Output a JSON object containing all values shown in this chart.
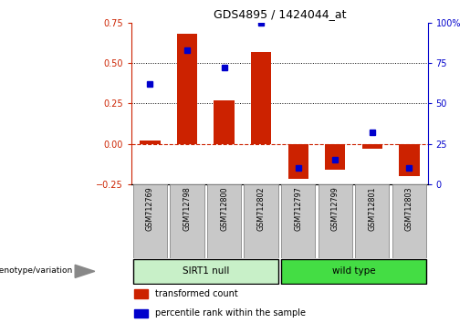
{
  "title": "GDS4895 / 1424044_at",
  "samples": [
    "GSM712769",
    "GSM712798",
    "GSM712800",
    "GSM712802",
    "GSM712797",
    "GSM712799",
    "GSM712801",
    "GSM712803"
  ],
  "red_bars": [
    0.02,
    0.68,
    0.27,
    0.57,
    -0.22,
    -0.16,
    -0.03,
    -0.2
  ],
  "blue_dots": [
    62,
    83,
    72,
    100,
    10,
    15,
    32,
    10
  ],
  "ylim_left": [
    -0.25,
    0.75
  ],
  "ylim_right": [
    0,
    100
  ],
  "yticks_left": [
    -0.25,
    0.0,
    0.25,
    0.5,
    0.75
  ],
  "yticks_right": [
    0,
    25,
    50,
    75,
    100
  ],
  "hlines_dotted": [
    0.25,
    0.5
  ],
  "hline_dashed": 0.0,
  "bar_color": "#CC2200",
  "dot_color": "#0000CC",
  "left_axis_color": "#CC2200",
  "right_axis_color": "#0000CC",
  "group_info": [
    {
      "start": 0,
      "end": 3,
      "color": "#C8F0C8",
      "label": "SIRT1 null"
    },
    {
      "start": 4,
      "end": 7,
      "color": "#44DD44",
      "label": "wild type"
    }
  ],
  "group_row_label": "genotype/variation",
  "legend_items": [
    "transformed count",
    "percentile rank within the sample"
  ],
  "legend_colors": [
    "#CC2200",
    "#0000CC"
  ],
  "xlabels_bg": "#C8C8C8",
  "xlabels_border": "#888888"
}
